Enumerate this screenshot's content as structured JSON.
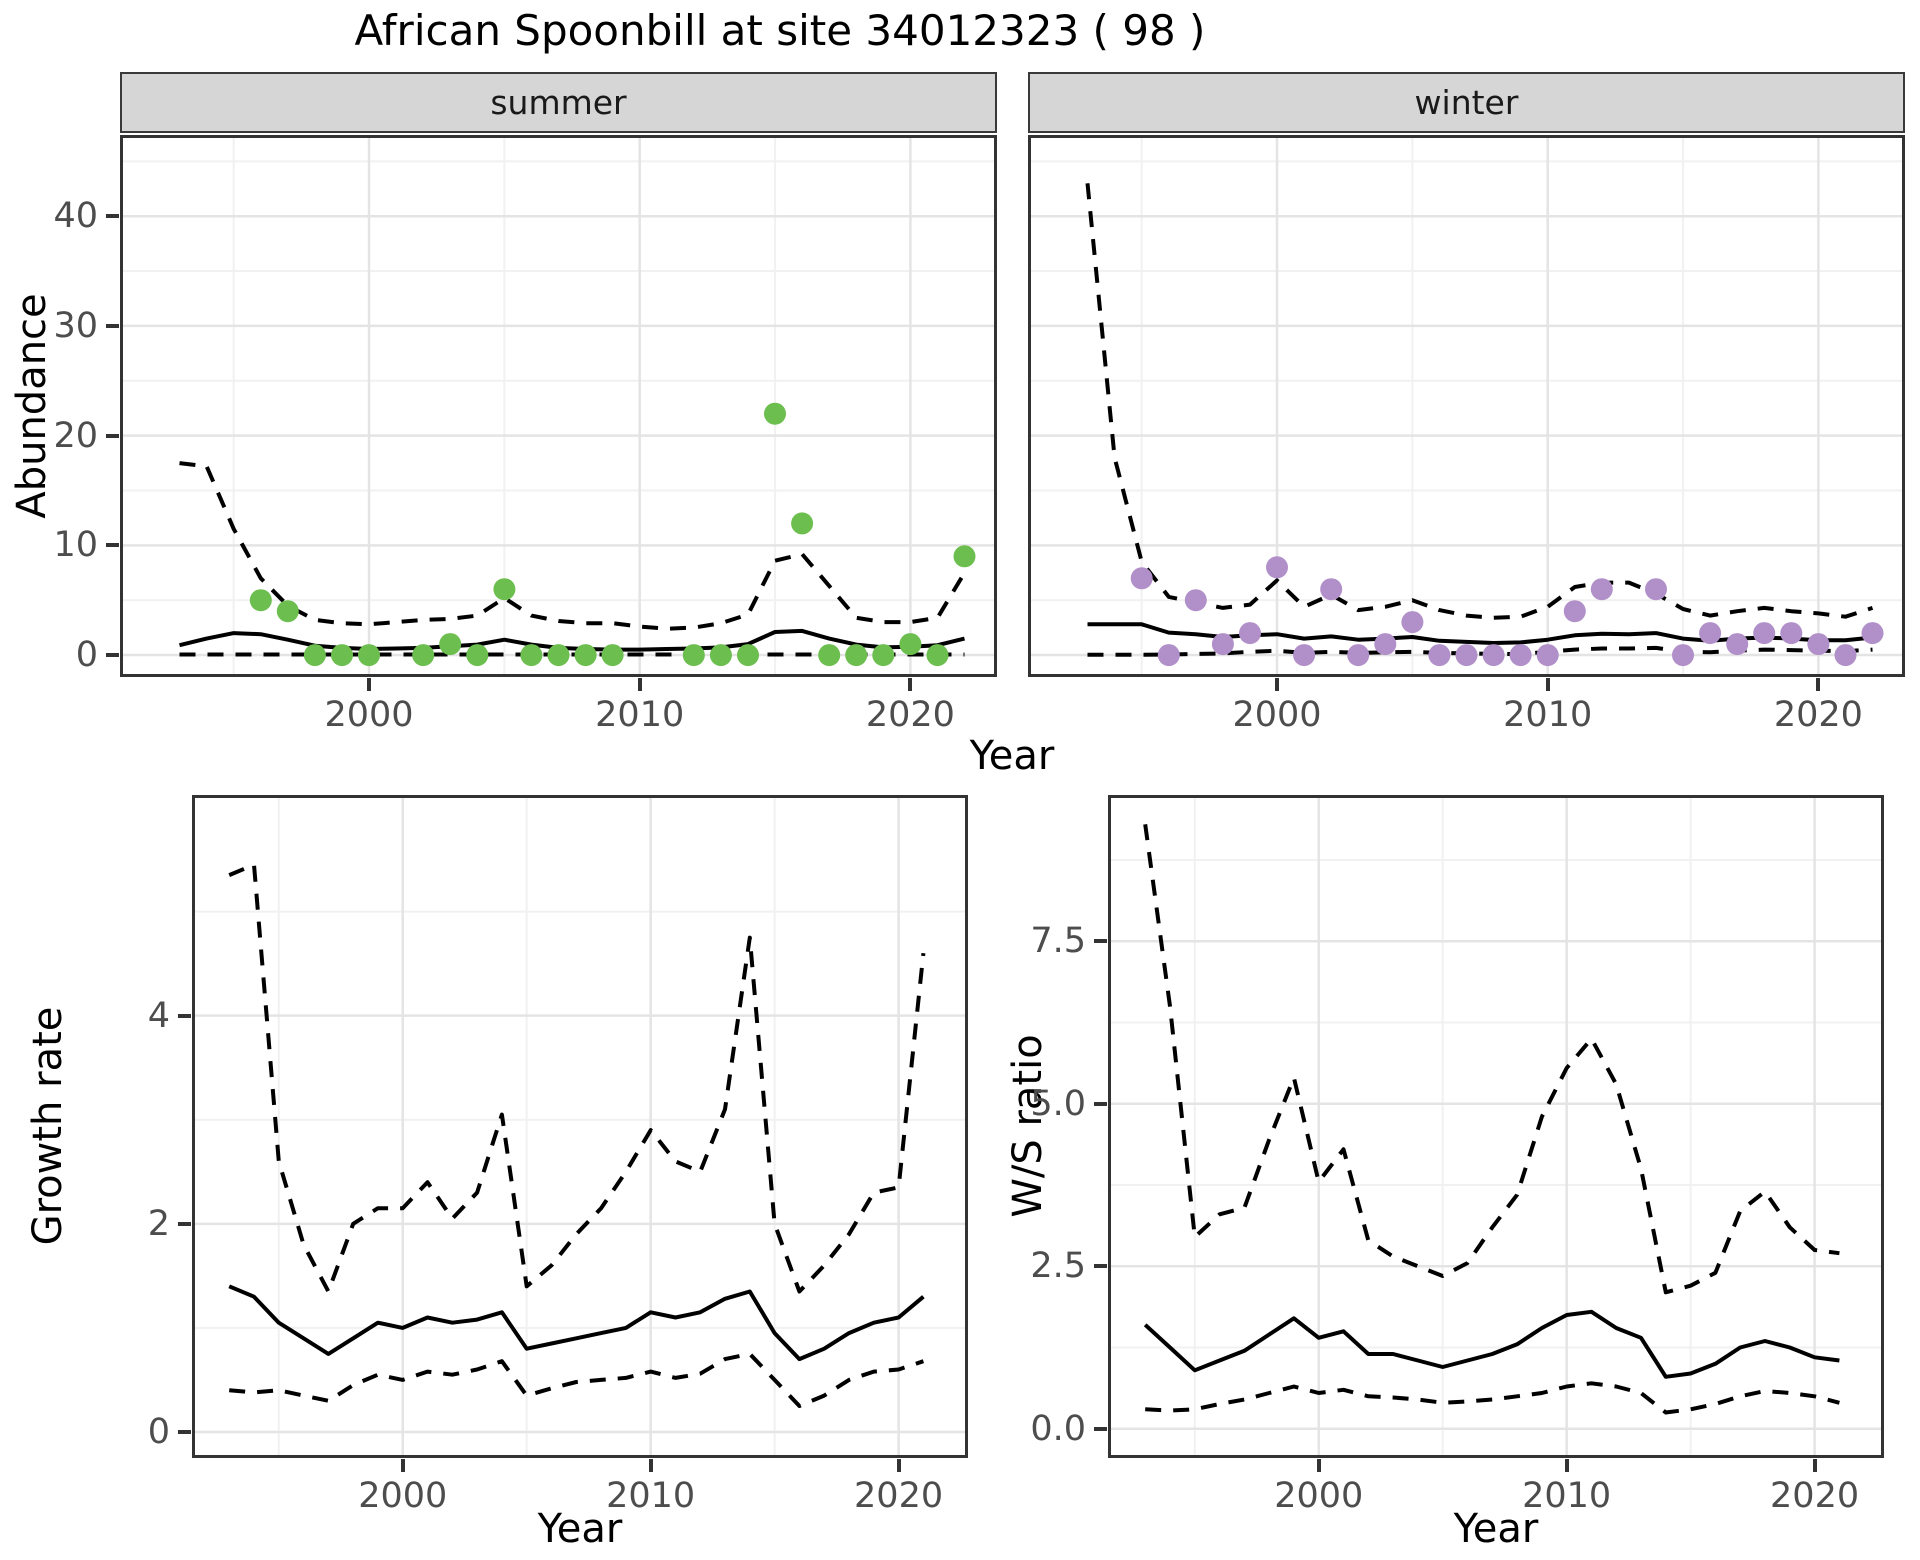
{
  "title": "African Spoonbill at site 34012323 ( 98 )",
  "facets": {
    "summer": "summer",
    "winter": "winter"
  },
  "axis_titles": {
    "x": "Year",
    "y_abundance": "Abundance",
    "y_growth": "Growth rate",
    "y_ws": "W/S ratio"
  },
  "colors": {
    "summer_point": "#6cbe4f",
    "winter_point": "#b18fc9",
    "line": "#000000",
    "panel_border": "#333333",
    "grid_major": "#e4e4e4",
    "grid_minor": "#f1f1f1",
    "strip_bg": "#d6d6d6",
    "tick_text": "#4d4d4d"
  },
  "chart_data": [
    {
      "id": "abundance_summer",
      "type": "scatter",
      "facet": "summer",
      "xlabel": "Year",
      "ylabel": "Abundance",
      "xlim": [
        1990.8,
        2023.2
      ],
      "ylim": [
        -2.0,
        47.4
      ],
      "x_major": [
        2000,
        2010,
        2020
      ],
      "x_major_labels": [
        "2000",
        "2010",
        "2020"
      ],
      "x_minor": [
        1995,
        2005,
        2015
      ],
      "y_major": [
        0,
        10,
        20,
        30,
        40
      ],
      "y_major_labels": [
        "0",
        "10",
        "20",
        "30",
        "40"
      ],
      "y_minor": [
        5,
        15,
        25,
        35,
        45
      ],
      "series": [
        {
          "name": "estimate",
          "style": "solid",
          "x": [
            1993,
            1994,
            1995,
            1996,
            1997,
            1998,
            1999,
            2000,
            2001,
            2002,
            2003,
            2004,
            2005,
            2006,
            2007,
            2008,
            2009,
            2010,
            2011,
            2012,
            2013,
            2014,
            2015,
            2016,
            2017,
            2018,
            2019,
            2020,
            2021,
            2022
          ],
          "y": [
            0.9,
            1.5,
            2.0,
            1.9,
            1.4,
            0.85,
            0.65,
            0.55,
            0.6,
            0.65,
            0.8,
            0.95,
            1.4,
            0.95,
            0.65,
            0.55,
            0.5,
            0.5,
            0.55,
            0.6,
            0.7,
            1.0,
            2.1,
            2.2,
            1.5,
            0.95,
            0.7,
            0.75,
            0.9,
            1.5
          ]
        },
        {
          "name": "upper_ci",
          "style": "dashed",
          "x": [
            1993,
            1994,
            1995,
            1996,
            1997,
            1998,
            1999,
            2000,
            2001,
            2002,
            2003,
            2004,
            2005,
            2006,
            2007,
            2008,
            2009,
            2010,
            2011,
            2012,
            2013,
            2014,
            2015,
            2016,
            2017,
            2018,
            2019,
            2020,
            2021,
            2022
          ],
          "y": [
            17.5,
            17.2,
            11.5,
            7.0,
            4.5,
            3.2,
            2.9,
            2.8,
            3.0,
            3.2,
            3.3,
            3.6,
            5.2,
            3.6,
            3.1,
            2.9,
            2.9,
            2.6,
            2.4,
            2.5,
            2.9,
            3.7,
            8.6,
            9.2,
            6.3,
            3.4,
            3.0,
            3.0,
            3.4,
            7.5
          ]
        },
        {
          "name": "lower_ci",
          "style": "dashed",
          "x": [
            1993,
            1994,
            1995,
            1996,
            1997,
            1998,
            1999,
            2000,
            2001,
            2002,
            2003,
            2004,
            2005,
            2006,
            2007,
            2008,
            2009,
            2010,
            2011,
            2012,
            2013,
            2014,
            2015,
            2016,
            2017,
            2018,
            2019,
            2020,
            2021,
            2022
          ],
          "y": [
            0.05,
            0.05,
            0.05,
            0.05,
            0.05,
            0.05,
            0.05,
            0.05,
            0.05,
            0.05,
            0.05,
            0.05,
            0.05,
            0.05,
            0.05,
            0.05,
            0.05,
            0.05,
            0.05,
            0.05,
            0.05,
            0.05,
            0.05,
            0.05,
            0.05,
            0.05,
            0.05,
            0.05,
            0.05,
            0.05
          ]
        }
      ],
      "points": {
        "name": "observed_counts_summer",
        "color": "#6cbe4f",
        "x": [
          1996,
          1997,
          1998,
          1999,
          2000,
          2002,
          2003,
          2004,
          2005,
          2006,
          2007,
          2008,
          2009,
          2012,
          2013,
          2014,
          2015,
          2016,
          2017,
          2018,
          2019,
          2020,
          2021,
          2022
        ],
        "y": [
          5,
          4,
          0,
          0,
          0,
          0,
          1,
          0,
          6,
          0,
          0,
          0,
          0,
          0,
          0,
          0,
          22,
          12,
          0,
          0,
          0,
          1,
          0,
          9
        ]
      }
    },
    {
      "id": "abundance_winter",
      "type": "scatter",
      "facet": "winter",
      "xlabel": "Year",
      "ylabel": "Abundance",
      "xlim": [
        1990.8,
        2023.2
      ],
      "ylim": [
        -2.0,
        47.4
      ],
      "x_major": [
        2000,
        2010,
        2020
      ],
      "x_major_labels": [
        "2000",
        "2010",
        "2020"
      ],
      "x_minor": [
        1995,
        2005,
        2015
      ],
      "y_major": [
        0,
        10,
        20,
        30,
        40
      ],
      "y_major_labels": [
        "0",
        "10",
        "20",
        "30",
        "40"
      ],
      "y_minor": [
        5,
        15,
        25,
        35,
        45
      ],
      "series": [
        {
          "name": "estimate",
          "style": "solid",
          "x": [
            1993,
            1994,
            1995,
            1996,
            1997,
            1998,
            1999,
            2000,
            2001,
            2002,
            2003,
            2004,
            2005,
            2006,
            2007,
            2008,
            2009,
            2010,
            2011,
            2012,
            2013,
            2014,
            2015,
            2016,
            2017,
            2018,
            2019,
            2020,
            2021,
            2022
          ],
          "y": [
            2.8,
            2.8,
            2.8,
            2.05,
            1.9,
            1.65,
            1.8,
            1.9,
            1.5,
            1.7,
            1.4,
            1.5,
            1.65,
            1.3,
            1.2,
            1.1,
            1.15,
            1.4,
            1.8,
            1.95,
            1.9,
            2.0,
            1.5,
            1.3,
            1.5,
            1.6,
            1.5,
            1.35,
            1.35,
            1.6
          ]
        },
        {
          "name": "upper_ci",
          "style": "dashed",
          "x": [
            1993,
            1994,
            1995,
            1996,
            1997,
            1998,
            1999,
            2000,
            2001,
            2002,
            2003,
            2004,
            2005,
            2006,
            2007,
            2008,
            2009,
            2010,
            2011,
            2012,
            2013,
            2014,
            2015,
            2016,
            2017,
            2018,
            2019,
            2020,
            2021,
            2022
          ],
          "y": [
            43,
            18,
            8.5,
            5.3,
            4.8,
            4.3,
            4.6,
            6.8,
            4.4,
            5.5,
            4.1,
            4.4,
            5.0,
            4.1,
            3.6,
            3.4,
            3.5,
            4.4,
            6.2,
            6.6,
            6.6,
            5.6,
            4.2,
            3.6,
            4.0,
            4.3,
            4.0,
            3.8,
            3.5,
            4.3
          ]
        },
        {
          "name": "lower_ci",
          "style": "dashed",
          "x": [
            1993,
            1994,
            1995,
            1996,
            1997,
            1998,
            1999,
            2000,
            2001,
            2002,
            2003,
            2004,
            2005,
            2006,
            2007,
            2008,
            2009,
            2010,
            2011,
            2012,
            2013,
            2014,
            2015,
            2016,
            2017,
            2018,
            2019,
            2020,
            2021,
            2022
          ],
          "y": [
            0.02,
            0.02,
            0.02,
            0.05,
            0.1,
            0.15,
            0.3,
            0.4,
            0.2,
            0.3,
            0.2,
            0.25,
            0.3,
            0.2,
            0.15,
            0.1,
            0.1,
            0.3,
            0.5,
            0.6,
            0.6,
            0.65,
            0.3,
            0.25,
            0.4,
            0.5,
            0.45,
            0.4,
            0.35,
            0.5
          ]
        }
      ],
      "points": {
        "name": "observed_counts_winter",
        "color": "#b18fc9",
        "x": [
          1995,
          1996,
          1997,
          1998,
          1999,
          2000,
          2001,
          2002,
          2003,
          2004,
          2005,
          2006,
          2007,
          2008,
          2009,
          2010,
          2011,
          2012,
          2014,
          2015,
          2016,
          2017,
          2018,
          2019,
          2020,
          2021,
          2022
        ],
        "y": [
          7,
          0,
          5,
          1,
          2,
          8,
          0,
          6,
          0,
          1,
          3,
          0,
          0,
          0,
          0,
          0,
          4,
          6,
          6,
          0,
          2,
          1,
          2,
          2,
          1,
          0,
          2
        ]
      }
    },
    {
      "id": "growth_rate",
      "type": "line",
      "xlabel": "Year",
      "ylabel": "Growth rate",
      "xlim": [
        1991.5,
        2022.8
      ],
      "ylim": [
        -0.25,
        6.12
      ],
      "x_major": [
        2000,
        2010,
        2020
      ],
      "x_major_labels": [
        "2000",
        "2010",
        "2020"
      ],
      "x_minor": [
        1995,
        2005,
        2015
      ],
      "y_major": [
        0,
        2,
        4
      ],
      "y_major_labels": [
        "0",
        "2",
        "4"
      ],
      "y_minor": [
        1,
        3,
        5
      ],
      "series": [
        {
          "name": "estimate",
          "style": "solid",
          "x": [
            1993,
            1994,
            1995,
            1996,
            1997,
            1998,
            1999,
            2000,
            2001,
            2002,
            2003,
            2004,
            2005,
            2006,
            2007,
            2008,
            2009,
            2010,
            2011,
            2012,
            2013,
            2014,
            2015,
            2016,
            2017,
            2018,
            2019,
            2020,
            2021
          ],
          "y": [
            1.4,
            1.3,
            1.05,
            0.9,
            0.75,
            0.9,
            1.05,
            1.0,
            1.1,
            1.05,
            1.08,
            1.15,
            0.8,
            0.85,
            0.9,
            0.95,
            1.0,
            1.15,
            1.1,
            1.15,
            1.28,
            1.35,
            0.95,
            0.7,
            0.8,
            0.95,
            1.05,
            1.1,
            1.3
          ]
        },
        {
          "name": "upper_ci",
          "style": "dashed",
          "x": [
            1993,
            1994,
            1995,
            1996,
            1997,
            1998,
            1999,
            2000,
            2001,
            2002,
            2003,
            2004,
            2005,
            2006,
            2007,
            2008,
            2009,
            2010,
            2011,
            2012,
            2013,
            2014,
            2015,
            2016,
            2017,
            2018,
            2019,
            2020,
            2021
          ],
          "y": [
            5.35,
            5.45,
            2.6,
            1.8,
            1.35,
            2.0,
            2.15,
            2.15,
            2.4,
            2.05,
            2.3,
            3.05,
            1.4,
            1.6,
            1.9,
            2.15,
            2.5,
            2.9,
            2.6,
            2.5,
            3.1,
            4.75,
            2.0,
            1.35,
            1.6,
            1.9,
            2.3,
            2.35,
            4.6
          ]
        },
        {
          "name": "lower_ci",
          "style": "dashed",
          "x": [
            1993,
            1994,
            1995,
            1996,
            1997,
            1998,
            1999,
            2000,
            2001,
            2002,
            2003,
            2004,
            2005,
            2006,
            2007,
            2008,
            2009,
            2010,
            2011,
            2012,
            2013,
            2014,
            2015,
            2016,
            2017,
            2018,
            2019,
            2020,
            2021
          ],
          "y": [
            0.4,
            0.38,
            0.4,
            0.35,
            0.3,
            0.45,
            0.55,
            0.5,
            0.58,
            0.55,
            0.6,
            0.68,
            0.35,
            0.42,
            0.48,
            0.5,
            0.52,
            0.58,
            0.52,
            0.56,
            0.7,
            0.75,
            0.5,
            0.25,
            0.35,
            0.5,
            0.58,
            0.6,
            0.68
          ]
        }
      ]
    },
    {
      "id": "ws_ratio",
      "type": "line",
      "xlabel": "Year",
      "ylabel": "W/S ratio",
      "xlim": [
        1991.5,
        2022.8
      ],
      "ylim": [
        -0.45,
        9.75
      ],
      "x_major": [
        2000,
        2010,
        2020
      ],
      "x_major_labels": [
        "2000",
        "2010",
        "2020"
      ],
      "x_minor": [
        1995,
        2005,
        2015
      ],
      "y_major": [
        0,
        2.5,
        5,
        7.5
      ],
      "y_major_labels": [
        "0.0",
        "2.5",
        "5.0",
        "7.5"
      ],
      "y_minor": [
        1.25,
        3.75,
        6.25,
        8.75
      ],
      "series": [
        {
          "name": "estimate",
          "style": "solid",
          "x": [
            1993,
            1994,
            1995,
            1996,
            1997,
            1998,
            1999,
            2000,
            2001,
            2002,
            2003,
            2004,
            2005,
            2006,
            2007,
            2008,
            2009,
            2010,
            2011,
            2012,
            2013,
            2014,
            2015,
            2016,
            2017,
            2018,
            2019,
            2020,
            2021
          ],
          "y": [
            1.6,
            1.25,
            0.9,
            1.05,
            1.2,
            1.45,
            1.7,
            1.4,
            1.5,
            1.15,
            1.15,
            1.05,
            0.95,
            1.05,
            1.15,
            1.3,
            1.55,
            1.75,
            1.8,
            1.55,
            1.4,
            0.8,
            0.85,
            1.0,
            1.25,
            1.35,
            1.25,
            1.1,
            1.05
          ]
        },
        {
          "name": "upper_ci",
          "style": "dashed",
          "x": [
            1993,
            1994,
            1995,
            1996,
            1997,
            1998,
            1999,
            2000,
            2001,
            2002,
            2003,
            2004,
            2005,
            2006,
            2007,
            2008,
            2009,
            2010,
            2011,
            2012,
            2013,
            2014,
            2015,
            2016,
            2017,
            2018,
            2019,
            2020,
            2021
          ],
          "y": [
            9.3,
            6.5,
            2.95,
            3.3,
            3.4,
            4.45,
            5.4,
            3.8,
            4.3,
            2.9,
            2.65,
            2.5,
            2.35,
            2.55,
            3.1,
            3.6,
            4.8,
            5.55,
            6.0,
            5.3,
            4.0,
            2.1,
            2.2,
            2.4,
            3.35,
            3.65,
            3.1,
            2.75,
            2.7
          ]
        },
        {
          "name": "lower_ci",
          "style": "dashed",
          "x": [
            1993,
            1994,
            1995,
            1996,
            1997,
            1998,
            1999,
            2000,
            2001,
            2002,
            2003,
            2004,
            2005,
            2006,
            2007,
            2008,
            2009,
            2010,
            2011,
            2012,
            2013,
            2014,
            2015,
            2016,
            2017,
            2018,
            2019,
            2020,
            2021
          ],
          "y": [
            0.3,
            0.28,
            0.3,
            0.38,
            0.45,
            0.55,
            0.65,
            0.55,
            0.6,
            0.5,
            0.48,
            0.45,
            0.4,
            0.42,
            0.45,
            0.5,
            0.55,
            0.65,
            0.7,
            0.65,
            0.55,
            0.25,
            0.3,
            0.38,
            0.5,
            0.58,
            0.55,
            0.5,
            0.4
          ]
        }
      ]
    }
  ]
}
